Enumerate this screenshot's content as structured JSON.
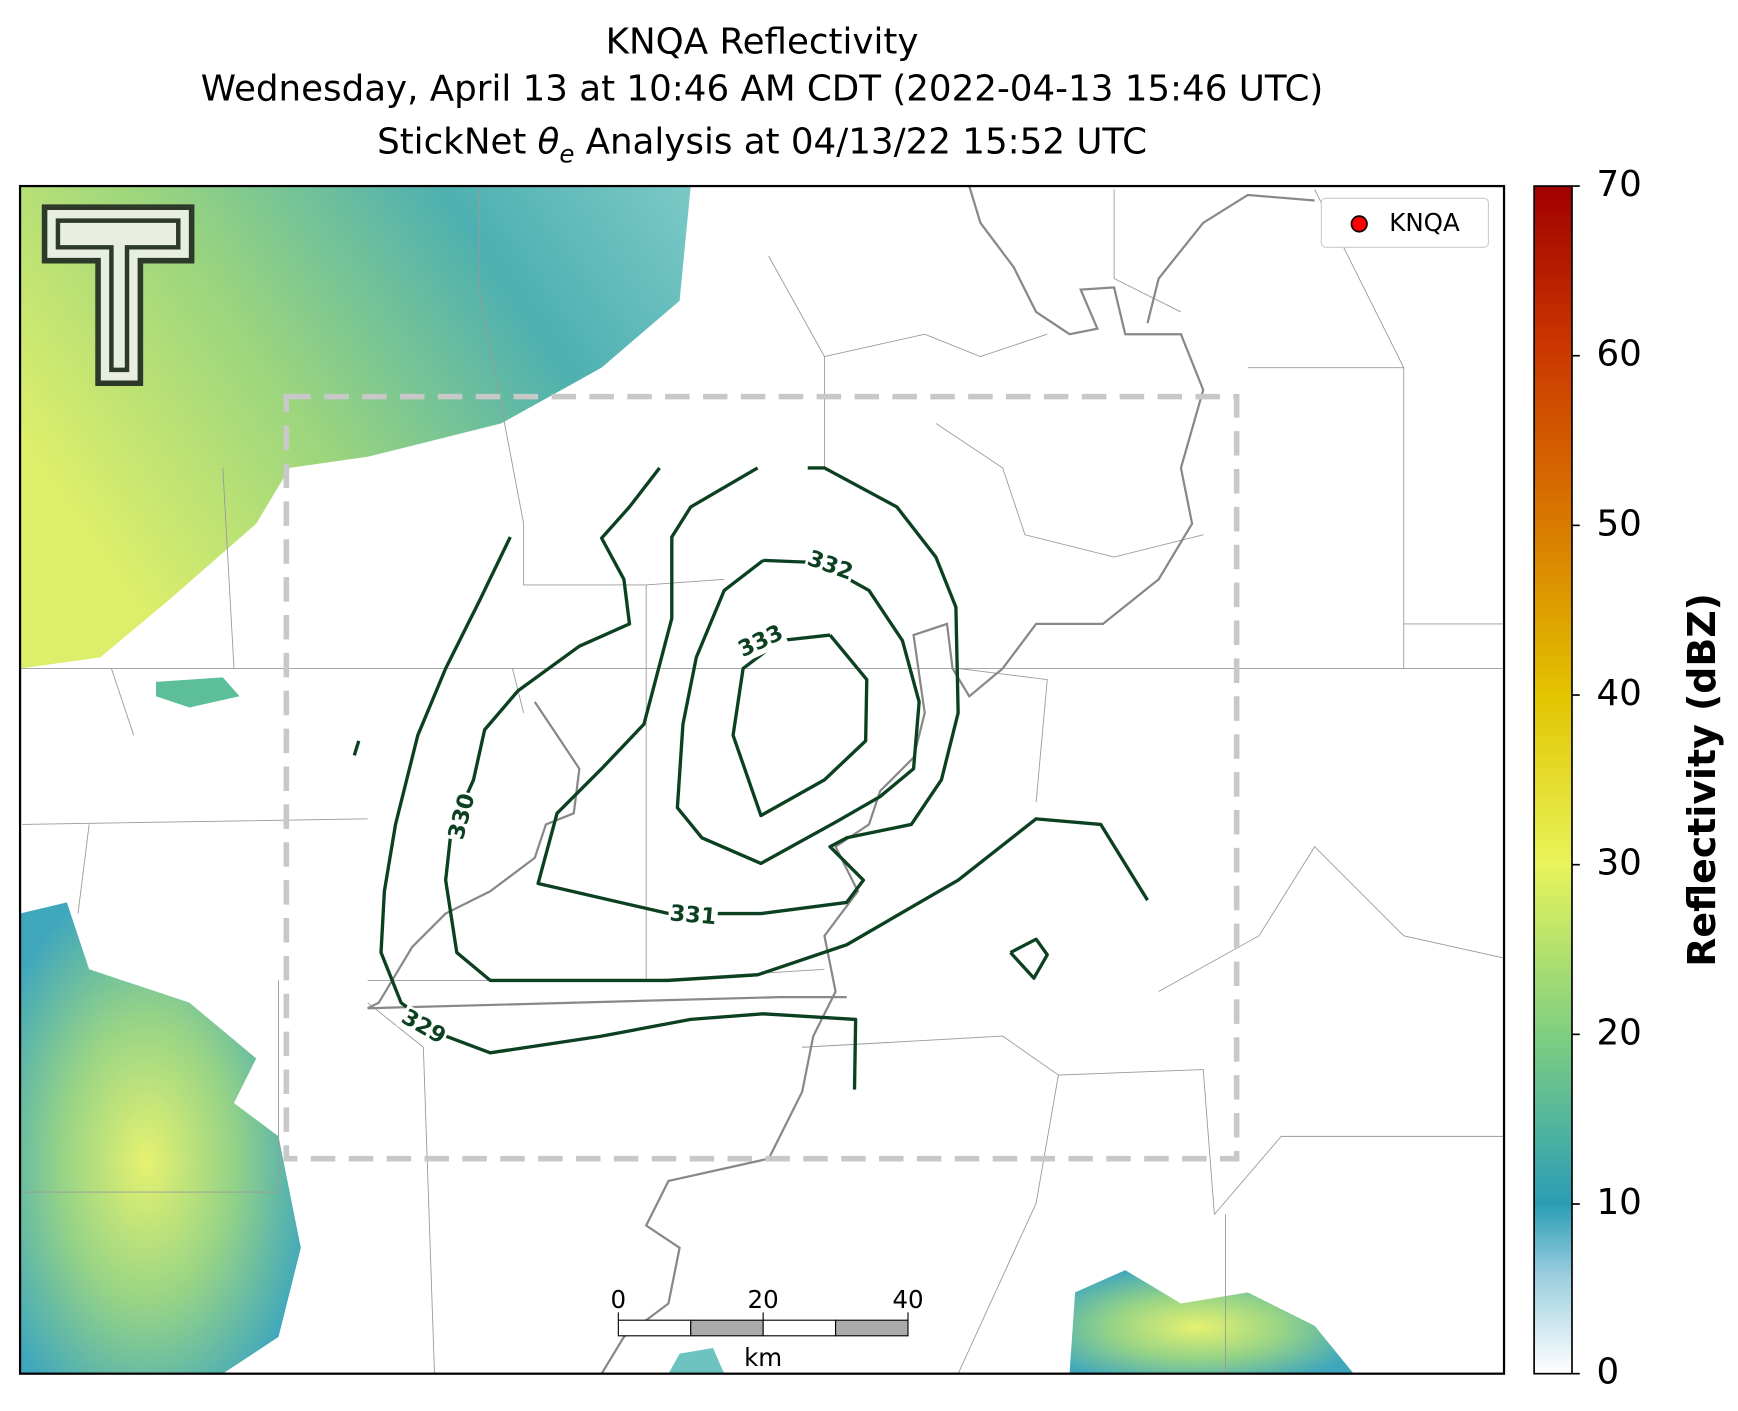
{
  "title": {
    "line1": "KNQA Reflectivity",
    "line2": "Wednesday, April 13 at 10:46 AM CDT (2022-04-13 15:46 UTC)",
    "line3_prefix": "StickNet",
    "line3_symbol": "θ",
    "line3_subscript": "e",
    "line3_suffix": "Analysis at 04/13/22 15:52 UTC"
  },
  "legend": {
    "label": "KNQA"
  },
  "colorbar": {
    "label": "Reflectivity (dBZ)",
    "lim": [
      0,
      70
    ],
    "ticks": [
      0,
      10,
      20,
      30,
      40,
      50,
      60,
      70
    ]
  },
  "contours": {
    "labels": [
      329,
      330,
      331,
      332,
      333
    ]
  },
  "scale_bar": {
    "ticks": [
      0,
      20,
      40
    ],
    "unit": "km"
  }
}
